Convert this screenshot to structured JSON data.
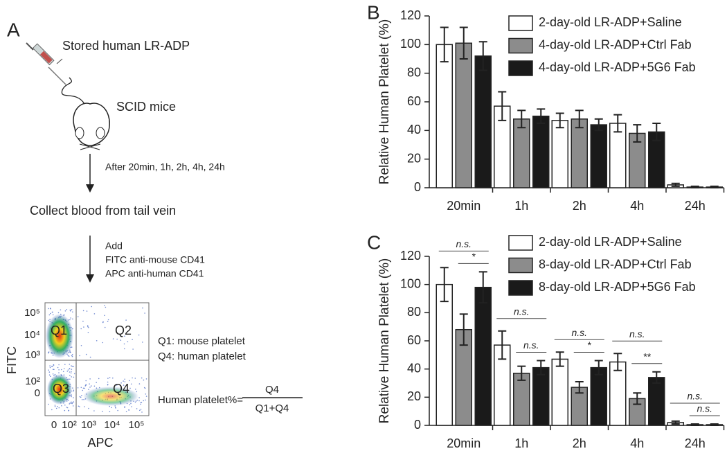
{
  "panel_a": {
    "label": "A",
    "product": "Stored human LR-ADP",
    "mouse": "SCID mice",
    "timepoints": "After 20min, 1h, 2h, 4h, 24h",
    "collect": "Collect blood from tail vein",
    "add_title": "Add",
    "reagents": [
      "FITC anti-mouse CD41",
      "APC anti-human CD41"
    ],
    "flow": {
      "x_label": "APC",
      "y_label": "FITC",
      "x_ticks": [
        "0",
        "10²",
        "10³",
        "10⁴",
        "10⁵"
      ],
      "y_ticks": [
        "10⁵",
        "10⁴",
        "10³",
        "10²",
        "0"
      ],
      "quadrants": [
        "Q1",
        "Q2",
        "Q3",
        "Q4"
      ]
    },
    "legend": [
      "Q1: mouse platelet",
      "Q4: human platelet"
    ],
    "formula": {
      "lhs": "Human platelet%=",
      "numerator": "Q4",
      "denominator": "Q1+Q4"
    }
  },
  "chart_data": [
    {
      "type": "bar",
      "panel": "B",
      "y_label": "Relative Human Platelet (%)",
      "categories": [
        "20min",
        "1h",
        "2h",
        "4h",
        "24h"
      ],
      "series": [
        {
          "name": "2-day-old LR-ADP+Saline",
          "color": "#ffffff",
          "values": [
            100,
            57,
            47,
            45,
            2
          ],
          "errors": [
            12,
            10,
            5,
            6,
            1
          ]
        },
        {
          "name": "4-day-old LR-ADP+Ctrl Fab",
          "color": "#8c8c8c",
          "values": [
            101,
            48,
            48,
            38,
            0.5
          ],
          "errors": [
            11,
            6,
            6,
            6,
            0.5
          ]
        },
        {
          "name": "4-day-old LR-ADP+5G6 Fab",
          "color": "#1a1a1a",
          "values": [
            92,
            50,
            44,
            39,
            0.5
          ],
          "errors": [
            10,
            5,
            4,
            6,
            0.5
          ]
        }
      ],
      "ylim": [
        0,
        120
      ],
      "yticks": [
        0,
        20,
        40,
        60,
        80,
        100,
        120
      ]
    },
    {
      "type": "bar",
      "panel": "C",
      "y_label": "Relative Human Platelet (%)",
      "categories": [
        "20min",
        "1h",
        "2h",
        "4h",
        "24h"
      ],
      "series": [
        {
          "name": "2-day-old LR-ADP+Saline",
          "color": "#ffffff",
          "values": [
            100,
            57,
            47,
            45,
            2
          ],
          "errors": [
            12,
            10,
            5,
            6,
            1
          ]
        },
        {
          "name": "8-day-old LR-ADP+Ctrl Fab",
          "color": "#8c8c8c",
          "values": [
            68,
            37,
            27,
            19,
            0.5
          ],
          "errors": [
            11,
            5,
            4,
            4,
            0.5
          ]
        },
        {
          "name": "8-day-old LR-ADP+5G6 Fab",
          "color": "#1a1a1a",
          "values": [
            98,
            41,
            41,
            34,
            0.5
          ],
          "errors": [
            11,
            5,
            5,
            4,
            0.5
          ]
        }
      ],
      "significance": [
        [
          "n.s.",
          "*"
        ],
        [
          "n.s.",
          "n.s."
        ],
        [
          "n.s.",
          "*"
        ],
        [
          "n.s.",
          "**"
        ],
        [
          "n.s.",
          "n.s."
        ]
      ],
      "ylim": [
        0,
        120
      ],
      "yticks": [
        0,
        20,
        40,
        60,
        80,
        100,
        120
      ]
    }
  ]
}
